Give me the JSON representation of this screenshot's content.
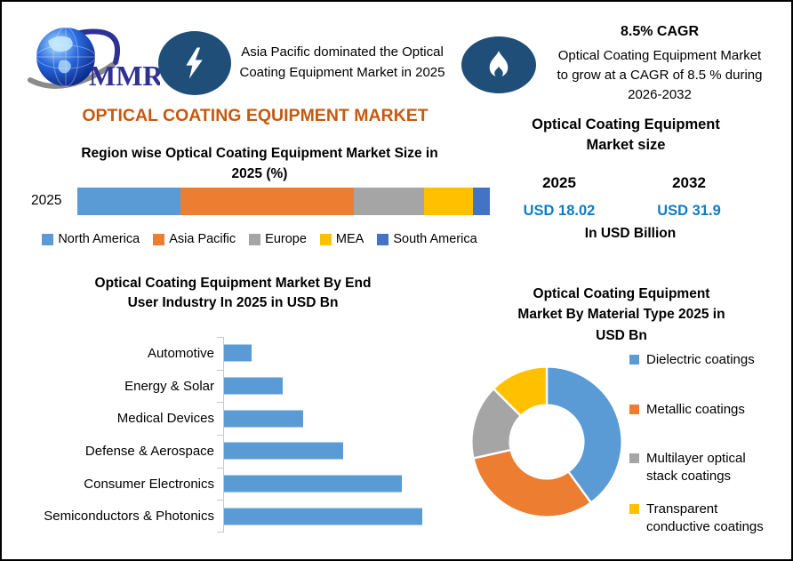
{
  "colors": {
    "accent_orange": "#C55A11",
    "navy": "#1F4E79",
    "value_blue": "#0F7DC2",
    "logo_blue": "#2E3192",
    "series_blue": "#5B9BD5",
    "series_orange": "#ED7D31",
    "series_gray": "#A5A5A5",
    "series_yellow": "#FFC000",
    "series_dark_blue": "#4472C4"
  },
  "header": {
    "logo_text": "MMR",
    "highlight_lines": [
      "Asia Pacific dominated the Optical",
      "Coating Equipment Market in 2025"
    ],
    "cagr_heading": "8.5% CAGR",
    "cagr_lines": [
      "Optical Coating Equipment Market",
      "to grow at a CAGR of 8.5 % during",
      "2026-2032"
    ]
  },
  "main_title": "OPTICAL COATING EQUIPMENT MARKET",
  "market_size": {
    "title": "Optical Coating Equipment Market size",
    "title_lines": [
      "Optical Coating Equipment",
      "Market size"
    ],
    "columns": [
      {
        "year": "2025",
        "value": "USD 18.02"
      },
      {
        "year": "2032",
        "value": "USD 31.9"
      }
    ],
    "unit_note": "In USD Billion"
  },
  "chart_data": [
    {
      "id": "region-share",
      "type": "bar",
      "variant": "stacked-horizontal",
      "title": "Region wise Optical Coating Equipment Market Size in 2025 (%)",
      "title_lines": [
        "Region wise Optical Coating Equipment Market Size in",
        "2025 (%)"
      ],
      "categories": [
        "2025"
      ],
      "unit": "%",
      "xlim": [
        0,
        100
      ],
      "legend_position": "bottom",
      "series": [
        {
          "name": "North America",
          "color": "#5B9BD5",
          "values": [
            25
          ]
        },
        {
          "name": "Asia Pacific",
          "color": "#ED7D31",
          "values": [
            42
          ]
        },
        {
          "name": "Europe",
          "color": "#A5A5A5",
          "values": [
            17
          ]
        },
        {
          "name": "MEA",
          "color": "#FFC000",
          "values": [
            12
          ]
        },
        {
          "name": "South America",
          "color": "#4472C4",
          "values": [
            4
          ]
        }
      ]
    },
    {
      "id": "end-user-industry",
      "type": "bar",
      "variant": "horizontal",
      "title": "Optical Coating Equipment Market By End User Industry In 2025 in USD Bn",
      "title_lines": [
        "Optical Coating Equipment Market By End",
        "User Industry In 2025 in USD Bn"
      ],
      "categories": [
        "Automotive",
        "Energy & Solar",
        "Medical Devices",
        "Defense & Aerospace",
        "Consumer Electronics",
        "Semiconductors & Photonics"
      ],
      "values": [
        0.75,
        1.6,
        2.15,
        3.25,
        4.85,
        5.4
      ],
      "xlim": [
        0,
        5.4
      ],
      "ylabel": "",
      "xlabel": "",
      "grid": false,
      "color": "#5B9BD5"
    },
    {
      "id": "material-type",
      "type": "pie",
      "variant": "donut",
      "title": "Optical Coating Equipment Market By Material Type 2025 in USD Bn",
      "title_lines": [
        "Optical Coating Equipment",
        "Market By Material Type 2025 in",
        "USD Bn"
      ],
      "legend_position": "right",
      "slices": [
        {
          "label": "Dielectric coatings",
          "color": "#5B9BD5",
          "pct": 40
        },
        {
          "label": "Metallic coatings",
          "color": "#ED7D31",
          "pct": 31.5
        },
        {
          "label": "Multilayer optical stack coatings",
          "color": "#A5A5A5",
          "pct": 16
        },
        {
          "label": "Transparent conductive coatings",
          "color": "#FFC000",
          "pct": 12.5
        }
      ]
    }
  ]
}
